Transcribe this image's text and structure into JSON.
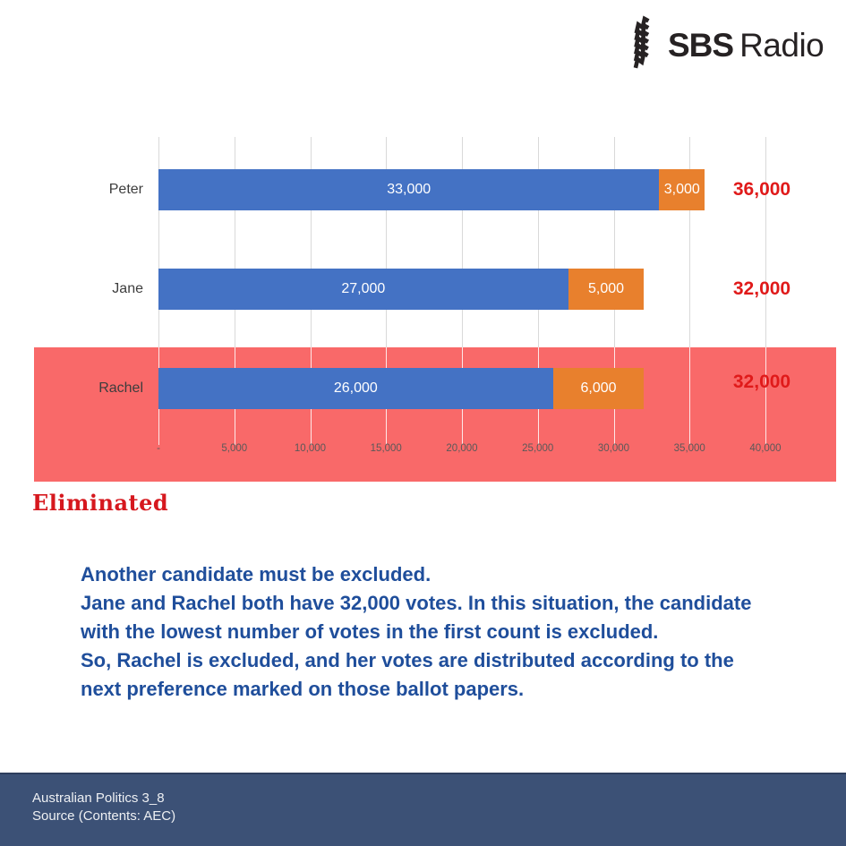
{
  "logo": {
    "brand": "SBS",
    "product": "Radio"
  },
  "chart_data": {
    "type": "bar",
    "orientation": "horizontal",
    "stacked": true,
    "title": "",
    "categories": [
      "Peter",
      "Jane",
      "Rachel"
    ],
    "series": [
      {
        "name": "segment-1",
        "color": "#4472C4",
        "values": [
          33000,
          27000,
          26000
        ],
        "labels": [
          "33,000",
          "27,000",
          "26,000"
        ]
      },
      {
        "name": "segment-2",
        "color": "#E8802D",
        "values": [
          3000,
          5000,
          6000
        ],
        "labels": [
          "3,000",
          "5,000",
          "6,000"
        ]
      }
    ],
    "totals": {
      "values": [
        36000,
        32000,
        32000
      ],
      "labels": [
        "36,000",
        "32,000",
        "32,000"
      ],
      "color": "#E01A1A"
    },
    "x_axis": {
      "min": 0,
      "max": 40000,
      "tick_interval": 5000,
      "tick_labels": [
        "-",
        "5,000",
        "10,000",
        "15,000",
        "20,000",
        "25,000",
        "30,000",
        "35,000",
        "40,000"
      ]
    },
    "grid": true,
    "legend": false,
    "grid_color": "#D9D9D9",
    "grid_color_on_band": "rgba(255,255,255,0.85)",
    "highlight": {
      "category": "Rachel",
      "color": "#F96969"
    }
  },
  "eliminated_label": "Eliminated",
  "explanation": {
    "lines": [
      "Another candidate must be excluded.",
      "Jane and Rachel both have 32,000 votes. In this situation, the candidate",
      "with the lowest number of votes in the first count is excluded.",
      "So, Rachel is excluded, and her votes are distributed according to the",
      "next preference marked on those ballot papers."
    ]
  },
  "footer": {
    "line1": "Australian Politics 3_8",
    "line2": "Source (Contents: AEC)",
    "background": "#3C5176"
  }
}
